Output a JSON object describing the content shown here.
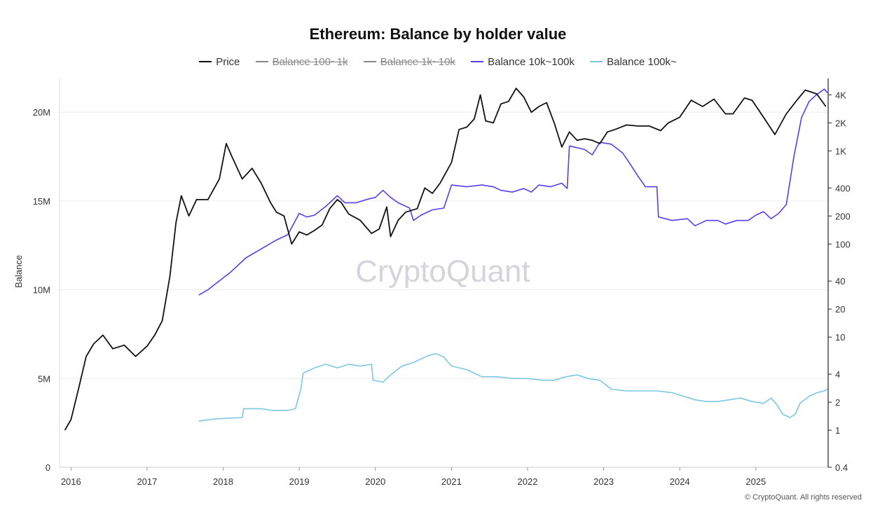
{
  "chart_data": {
    "type": "line",
    "title": "Ethereum: Balance by holder value",
    "ylabel": "Balance",
    "y_left": {
      "ticks": [
        0,
        5000000,
        10000000,
        15000000,
        20000000
      ],
      "tick_labels": [
        "0",
        "5M",
        "10M",
        "15M",
        "20M"
      ],
      "lim": [
        0,
        22000000
      ]
    },
    "y_right": {
      "scale": "log",
      "ticks": [
        0.4,
        1,
        2,
        4,
        10,
        20,
        40,
        100,
        200,
        400,
        1000,
        2000,
        4000
      ],
      "tick_labels": [
        "0.4",
        "1",
        "2",
        "4",
        "10",
        "20",
        "40",
        "100",
        "200",
        "400",
        "1K",
        "2K",
        "4K"
      ],
      "lim": [
        0.4,
        6000
      ]
    },
    "x_ticks": [
      "2016",
      "2017",
      "2018",
      "2019",
      "2020",
      "2021",
      "2022",
      "2023",
      "2024",
      "2025"
    ],
    "x_lim": [
      2015.85,
      2025.95
    ],
    "grid": true,
    "legend_position": "top-center",
    "series": [
      {
        "name": "Price",
        "axis": "right",
        "color": "#111111",
        "visible": true,
        "points": [
          [
            2015.92,
            1.0
          ],
          [
            2016.0,
            1.3
          ],
          [
            2016.1,
            2.8
          ],
          [
            2016.2,
            6.2
          ],
          [
            2016.3,
            8.5
          ],
          [
            2016.42,
            10.5
          ],
          [
            2016.55,
            7.5
          ],
          [
            2016.7,
            8.2
          ],
          [
            2016.85,
            6.2
          ],
          [
            2017.0,
            8.0
          ],
          [
            2017.1,
            10.5
          ],
          [
            2017.2,
            15
          ],
          [
            2017.3,
            45
          ],
          [
            2017.38,
            170
          ],
          [
            2017.45,
            330
          ],
          [
            2017.55,
            200
          ],
          [
            2017.65,
            300
          ],
          [
            2017.8,
            300
          ],
          [
            2017.95,
            500
          ],
          [
            2018.04,
            1200
          ],
          [
            2018.12,
            850
          ],
          [
            2018.25,
            500
          ],
          [
            2018.38,
            650
          ],
          [
            2018.5,
            450
          ],
          [
            2018.62,
            280
          ],
          [
            2018.7,
            220
          ],
          [
            2018.8,
            200
          ],
          [
            2018.9,
            100
          ],
          [
            2019.0,
            135
          ],
          [
            2019.1,
            125
          ],
          [
            2019.2,
            140
          ],
          [
            2019.3,
            160
          ],
          [
            2019.4,
            240
          ],
          [
            2019.5,
            300
          ],
          [
            2019.55,
            280
          ],
          [
            2019.65,
            210
          ],
          [
            2019.8,
            180
          ],
          [
            2019.95,
            130
          ],
          [
            2020.05,
            145
          ],
          [
            2020.15,
            250
          ],
          [
            2020.2,
            120
          ],
          [
            2020.3,
            180
          ],
          [
            2020.4,
            220
          ],
          [
            2020.55,
            240
          ],
          [
            2020.65,
            400
          ],
          [
            2020.75,
            350
          ],
          [
            2020.85,
            450
          ],
          [
            2021.0,
            750
          ],
          [
            2021.1,
            1700
          ],
          [
            2021.2,
            1800
          ],
          [
            2021.3,
            2200
          ],
          [
            2021.38,
            4000
          ],
          [
            2021.45,
            2100
          ],
          [
            2021.55,
            2000
          ],
          [
            2021.65,
            3200
          ],
          [
            2021.75,
            3400
          ],
          [
            2021.85,
            4700
          ],
          [
            2021.95,
            3800
          ],
          [
            2022.05,
            2600
          ],
          [
            2022.15,
            3000
          ],
          [
            2022.25,
            3300
          ],
          [
            2022.35,
            2000
          ],
          [
            2022.45,
            1100
          ],
          [
            2022.55,
            1600
          ],
          [
            2022.65,
            1300
          ],
          [
            2022.75,
            1350
          ],
          [
            2022.85,
            1300
          ],
          [
            2022.95,
            1200
          ],
          [
            2023.05,
            1600
          ],
          [
            2023.15,
            1700
          ],
          [
            2023.3,
            1900
          ],
          [
            2023.45,
            1850
          ],
          [
            2023.6,
            1850
          ],
          [
            2023.75,
            1650
          ],
          [
            2023.85,
            2000
          ],
          [
            2024.0,
            2300
          ],
          [
            2024.15,
            3500
          ],
          [
            2024.3,
            3000
          ],
          [
            2024.45,
            3600
          ],
          [
            2024.6,
            2500
          ],
          [
            2024.7,
            2500
          ],
          [
            2024.85,
            3700
          ],
          [
            2024.95,
            3500
          ],
          [
            2025.1,
            2300
          ],
          [
            2025.25,
            1500
          ],
          [
            2025.4,
            2500
          ],
          [
            2025.55,
            3600
          ],
          [
            2025.65,
            4500
          ],
          [
            2025.8,
            4100
          ],
          [
            2025.92,
            3000
          ]
        ]
      },
      {
        "name": "Balance 100~1k",
        "axis": "left",
        "color": "#888888",
        "visible": false
      },
      {
        "name": "Balance 1k~10k",
        "axis": "left",
        "color": "#888888",
        "visible": false
      },
      {
        "name": "Balance 10k~100k",
        "axis": "left",
        "color": "#5b3cf0",
        "visible": true,
        "points": [
          [
            2017.68,
            9700000.0
          ],
          [
            2017.8,
            10000000.0
          ],
          [
            2017.95,
            10500000.0
          ],
          [
            2018.1,
            11000000.0
          ],
          [
            2018.3,
            11800000.0
          ],
          [
            2018.5,
            12300000.0
          ],
          [
            2018.7,
            12800000.0
          ],
          [
            2018.85,
            13100000.0
          ],
          [
            2019.0,
            14300000.0
          ],
          [
            2019.1,
            14100000.0
          ],
          [
            2019.2,
            14200000.0
          ],
          [
            2019.35,
            14700000.0
          ],
          [
            2019.5,
            15300000.0
          ],
          [
            2019.6,
            14900000.0
          ],
          [
            2019.75,
            14900000.0
          ],
          [
            2019.9,
            15100000.0
          ],
          [
            2020.0,
            15200000.0
          ],
          [
            2020.1,
            15600000.0
          ],
          [
            2020.2,
            15200000.0
          ],
          [
            2020.3,
            14900000.0
          ],
          [
            2020.45,
            14600000.0
          ],
          [
            2020.5,
            13900000.0
          ],
          [
            2020.6,
            14200000.0
          ],
          [
            2020.75,
            14500000.0
          ],
          [
            2020.9,
            14600000.0
          ],
          [
            2021.0,
            15900000.0
          ],
          [
            2021.2,
            15800000.0
          ],
          [
            2021.4,
            15900000.0
          ],
          [
            2021.55,
            15800000.0
          ],
          [
            2021.65,
            15600000.0
          ],
          [
            2021.8,
            15500000.0
          ],
          [
            2021.95,
            15700000.0
          ],
          [
            2022.05,
            15500000.0
          ],
          [
            2022.15,
            15900000.0
          ],
          [
            2022.3,
            15800000.0
          ],
          [
            2022.45,
            16000000.0
          ],
          [
            2022.52,
            15700000.0
          ],
          [
            2022.55,
            18100000.0
          ],
          [
            2022.65,
            18000000.0
          ],
          [
            2022.75,
            17900000.0
          ],
          [
            2022.85,
            17600000.0
          ],
          [
            2022.95,
            18300000.0
          ],
          [
            2023.1,
            18200000.0
          ],
          [
            2023.25,
            17700000.0
          ],
          [
            2023.33,
            17200000.0
          ],
          [
            2023.45,
            16400000.0
          ],
          [
            2023.55,
            15800000.0
          ],
          [
            2023.7,
            15800000.0
          ],
          [
            2023.72,
            14100000.0
          ],
          [
            2023.9,
            13900000.0
          ],
          [
            2024.1,
            14000000.0
          ],
          [
            2024.2,
            13600000.0
          ],
          [
            2024.35,
            13900000.0
          ],
          [
            2024.5,
            13900000.0
          ],
          [
            2024.6,
            13700000.0
          ],
          [
            2024.75,
            13900000.0
          ],
          [
            2024.9,
            13900000.0
          ],
          [
            2025.0,
            14200000.0
          ],
          [
            2025.1,
            14400000.0
          ],
          [
            2025.2,
            14000000.0
          ],
          [
            2025.3,
            14300000.0
          ],
          [
            2025.4,
            14800000.0
          ],
          [
            2025.5,
            17500000.0
          ],
          [
            2025.6,
            19700000.0
          ],
          [
            2025.7,
            20600000.0
          ],
          [
            2025.8,
            21000000.0
          ],
          [
            2025.9,
            21300000.0
          ],
          [
            2025.94,
            21100000.0
          ]
        ]
      },
      {
        "name": "Balance 100k~",
        "axis": "left",
        "color": "#7cc8e2",
        "visible": true,
        "points": [
          [
            2017.68,
            2600000.0
          ],
          [
            2017.85,
            2700000.0
          ],
          [
            2018.0,
            2750000.0
          ],
          [
            2018.25,
            2800000.0
          ],
          [
            2018.27,
            3300000.0
          ],
          [
            2018.5,
            3300000.0
          ],
          [
            2018.65,
            3200000.0
          ],
          [
            2018.85,
            3200000.0
          ],
          [
            2018.95,
            3300000.0
          ],
          [
            2019.02,
            4400000.0
          ],
          [
            2019.05,
            5300000.0
          ],
          [
            2019.2,
            5600000.0
          ],
          [
            2019.35,
            5800000.0
          ],
          [
            2019.5,
            5600000.0
          ],
          [
            2019.65,
            5800000.0
          ],
          [
            2019.8,
            5700000.0
          ],
          [
            2019.95,
            5800000.0
          ],
          [
            2019.97,
            4900000.0
          ],
          [
            2020.1,
            4800000.0
          ],
          [
            2020.2,
            5200000.0
          ],
          [
            2020.35,
            5700000.0
          ],
          [
            2020.5,
            5900000.0
          ],
          [
            2020.6,
            6100000.0
          ],
          [
            2020.7,
            6300000.0
          ],
          [
            2020.8,
            6400000.0
          ],
          [
            2020.9,
            6200000.0
          ],
          [
            2021.0,
            5700000.0
          ],
          [
            2021.2,
            5500000.0
          ],
          [
            2021.4,
            5100000.0
          ],
          [
            2021.6,
            5100000.0
          ],
          [
            2021.8,
            5000000.0
          ],
          [
            2022.0,
            5000000.0
          ],
          [
            2022.2,
            4900000.0
          ],
          [
            2022.35,
            4900000.0
          ],
          [
            2022.5,
            5100000.0
          ],
          [
            2022.65,
            5200000.0
          ],
          [
            2022.8,
            5000000.0
          ],
          [
            2022.95,
            4900000.0
          ],
          [
            2023.1,
            4400000.0
          ],
          [
            2023.3,
            4300000.0
          ],
          [
            2023.5,
            4300000.0
          ],
          [
            2023.7,
            4300000.0
          ],
          [
            2023.9,
            4200000.0
          ],
          [
            2024.05,
            4000000.0
          ],
          [
            2024.2,
            3800000.0
          ],
          [
            2024.35,
            3700000.0
          ],
          [
            2024.5,
            3700000.0
          ],
          [
            2024.65,
            3800000.0
          ],
          [
            2024.8,
            3900000.0
          ],
          [
            2024.95,
            3700000.0
          ],
          [
            2025.1,
            3600000.0
          ],
          [
            2025.2,
            3900000.0
          ],
          [
            2025.28,
            3500000.0
          ],
          [
            2025.35,
            3000000.0
          ],
          [
            2025.45,
            2800000.0
          ],
          [
            2025.52,
            3000000.0
          ],
          [
            2025.58,
            3600000.0
          ],
          [
            2025.7,
            4000000.0
          ],
          [
            2025.8,
            4200000.0
          ],
          [
            2025.9,
            4300000.0
          ],
          [
            2025.94,
            4400000.0
          ]
        ]
      }
    ]
  },
  "watermark": "CryptoQuant",
  "copyright": "© CryptoQuant. All rights reserved"
}
